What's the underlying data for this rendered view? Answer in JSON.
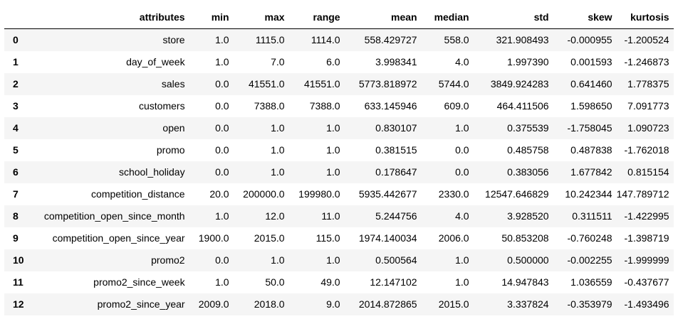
{
  "table": {
    "columns": [
      "attributes",
      "min",
      "max",
      "range",
      "mean",
      "median",
      "std",
      "skew",
      "kurtosis"
    ],
    "rows": [
      {
        "index": "0",
        "cells": [
          "store",
          "1.0",
          "1115.0",
          "1114.0",
          "558.429727",
          "558.0",
          "321.908493",
          "-0.000955",
          "-1.200524"
        ]
      },
      {
        "index": "1",
        "cells": [
          "day_of_week",
          "1.0",
          "7.0",
          "6.0",
          "3.998341",
          "4.0",
          "1.997390",
          "0.001593",
          "-1.246873"
        ]
      },
      {
        "index": "2",
        "cells": [
          "sales",
          "0.0",
          "41551.0",
          "41551.0",
          "5773.818972",
          "5744.0",
          "3849.924283",
          "0.641460",
          "1.778375"
        ]
      },
      {
        "index": "3",
        "cells": [
          "customers",
          "0.0",
          "7388.0",
          "7388.0",
          "633.145946",
          "609.0",
          "464.411506",
          "1.598650",
          "7.091773"
        ]
      },
      {
        "index": "4",
        "cells": [
          "open",
          "0.0",
          "1.0",
          "1.0",
          "0.830107",
          "1.0",
          "0.375539",
          "-1.758045",
          "1.090723"
        ]
      },
      {
        "index": "5",
        "cells": [
          "promo",
          "0.0",
          "1.0",
          "1.0",
          "0.381515",
          "0.0",
          "0.485758",
          "0.487838",
          "-1.762018"
        ]
      },
      {
        "index": "6",
        "cells": [
          "school_holiday",
          "0.0",
          "1.0",
          "1.0",
          "0.178647",
          "0.0",
          "0.383056",
          "1.677842",
          "0.815154"
        ]
      },
      {
        "index": "7",
        "cells": [
          "competition_distance",
          "20.0",
          "200000.0",
          "199980.0",
          "5935.442677",
          "2330.0",
          "12547.646829",
          "10.242344",
          "147.789712"
        ]
      },
      {
        "index": "8",
        "cells": [
          "competition_open_since_month",
          "1.0",
          "12.0",
          "11.0",
          "5.244756",
          "4.0",
          "3.928520",
          "0.311511",
          "-1.422995"
        ]
      },
      {
        "index": "9",
        "cells": [
          "competition_open_since_year",
          "1900.0",
          "2015.0",
          "115.0",
          "1974.140034",
          "2006.0",
          "50.853208",
          "-0.760248",
          "-1.398719"
        ]
      },
      {
        "index": "10",
        "cells": [
          "promo2",
          "0.0",
          "1.0",
          "1.0",
          "0.500564",
          "1.0",
          "0.500000",
          "-0.002255",
          "-1.999999"
        ]
      },
      {
        "index": "11",
        "cells": [
          "promo2_since_week",
          "1.0",
          "50.0",
          "49.0",
          "12.147102",
          "1.0",
          "14.947843",
          "1.036559",
          "-0.437677"
        ]
      },
      {
        "index": "12",
        "cells": [
          "promo2_since_year",
          "2009.0",
          "2018.0",
          "9.0",
          "2014.872865",
          "2015.0",
          "3.337824",
          "-0.353979",
          "-1.493496"
        ]
      }
    ]
  }
}
